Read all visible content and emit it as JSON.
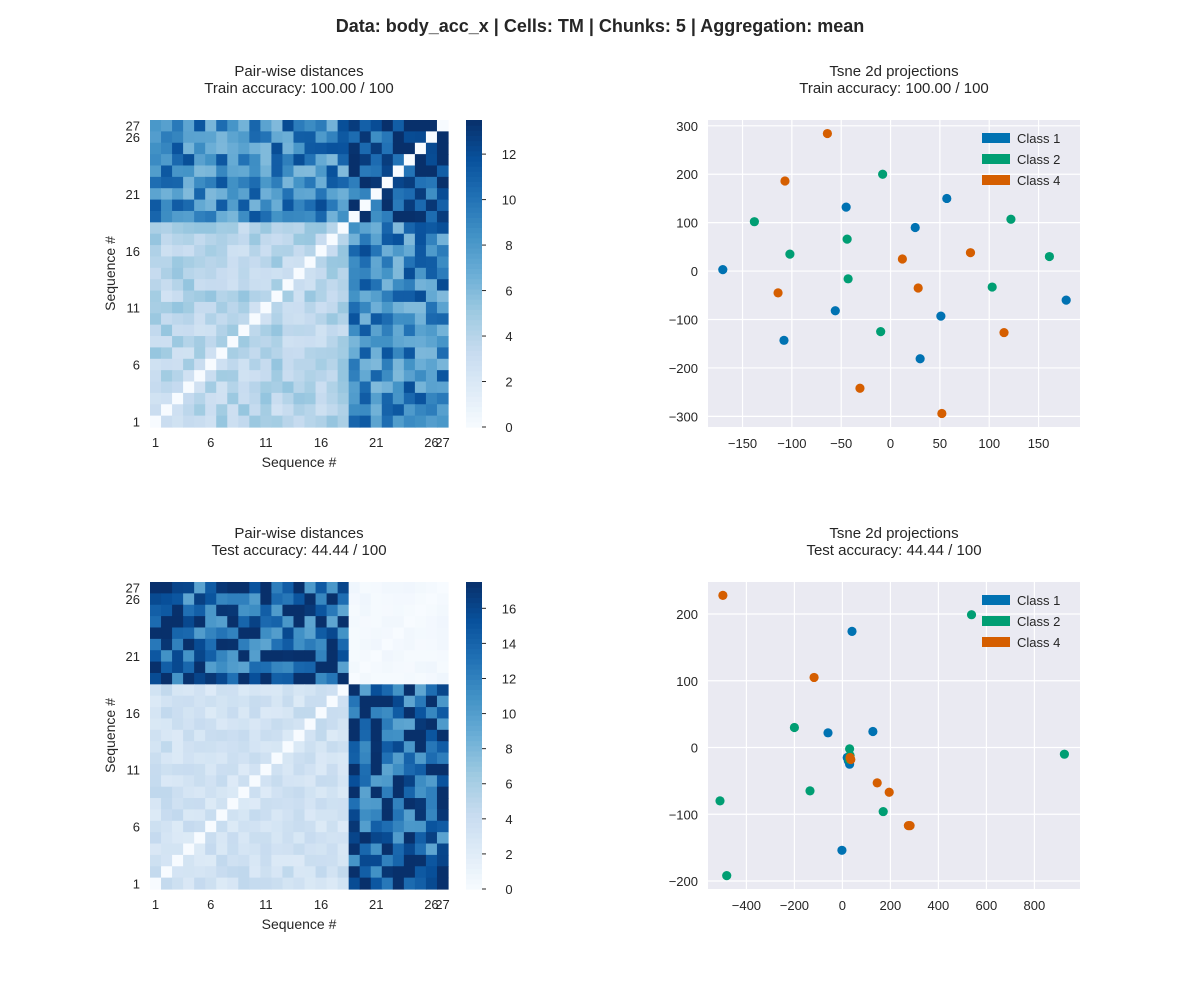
{
  "suptitle": "Data: body_acc_x | Cells: TM | Chunks: 5 | Aggregation: mean",
  "chart_data": [
    {
      "type": "heatmap",
      "title": "Pair-wise distances",
      "subtitle": "Train accuracy: 100.00 / 100",
      "xlabel": "Sequence #",
      "ylabel": "Sequence #",
      "tick_labels": [
        "1",
        "6",
        "11",
        "16",
        "21",
        "26",
        "27"
      ],
      "n": 27,
      "block_split": 18,
      "block_values": {
        "within_first": 4,
        "within_second": 12,
        "between": 9
      },
      "diagonal_value": 0,
      "colormap": "Blues",
      "colorbar_ticks": [
        0,
        2,
        4,
        6,
        8,
        10,
        12
      ],
      "colorbar_range": [
        0,
        13.5
      ]
    },
    {
      "type": "scatter",
      "title": "Tsne 2d projections",
      "subtitle": "Train accuracy: 100.00 / 100",
      "xlim": [
        -185,
        192
      ],
      "ylim": [
        -322,
        312
      ],
      "xticks": [
        -150,
        -100,
        -50,
        0,
        50,
        100,
        150
      ],
      "yticks": [
        -300,
        -200,
        -100,
        0,
        100,
        200,
        300
      ],
      "legend_position": "top-right",
      "series": [
        {
          "name": "Class 1",
          "color": "#0072B2",
          "points": [
            [
              -170,
              3
            ],
            [
              -45,
              132
            ],
            [
              57,
              150
            ],
            [
              25,
              90
            ],
            [
              -56,
              -82
            ],
            [
              -108,
              -143
            ],
            [
              51,
              -93
            ],
            [
              30,
              -181
            ],
            [
              178,
              -60
            ]
          ]
        },
        {
          "name": "Class 2",
          "color": "#009E73",
          "points": [
            [
              -138,
              102
            ],
            [
              -8,
              200
            ],
            [
              -44,
              66
            ],
            [
              -102,
              35
            ],
            [
              -43,
              -16
            ],
            [
              -10,
              -125
            ],
            [
              122,
              107
            ],
            [
              161,
              30
            ],
            [
              103,
              -33
            ]
          ]
        },
        {
          "name": "Class 4",
          "color": "#D55E00",
          "points": [
            [
              -64,
              284
            ],
            [
              -107,
              186
            ],
            [
              -114,
              -45
            ],
            [
              12,
              25
            ],
            [
              28,
              -35
            ],
            [
              81,
              38
            ],
            [
              -31,
              -242
            ],
            [
              52,
              -294
            ],
            [
              115,
              -127
            ]
          ]
        }
      ]
    },
    {
      "type": "heatmap",
      "title": "Pair-wise distances",
      "subtitle": "Test accuracy: 44.44 / 100",
      "xlabel": "Sequence #",
      "ylabel": "Sequence #",
      "tick_labels": [
        "1",
        "6",
        "11",
        "16",
        "21",
        "26",
        "27"
      ],
      "n": 27,
      "block_split": 18,
      "block_values": {
        "within_first": 3.5,
        "within_second": 0.3,
        "between": 14.5
      },
      "diagonal_value": 0,
      "colormap": "Blues",
      "colorbar_ticks": [
        0,
        2,
        4,
        6,
        8,
        10,
        12,
        14,
        16
      ],
      "colorbar_range": [
        0,
        17.5
      ]
    },
    {
      "type": "scatter",
      "title": "Tsne 2d projections",
      "subtitle": "Test accuracy: 44.44 / 100",
      "xlim": [
        -560,
        990
      ],
      "ylim": [
        -212,
        248
      ],
      "xticks": [
        -400,
        -200,
        0,
        200,
        400,
        600,
        800
      ],
      "yticks": [
        -200,
        -100,
        0,
        100,
        200
      ],
      "legend_position": "top-right",
      "series": [
        {
          "name": "Class 1",
          "color": "#0072B2",
          "points": [
            [
              40,
              174
            ],
            [
              -60,
              22
            ],
            [
              127,
              24
            ],
            [
              20,
              -15
            ],
            [
              25,
              -20
            ],
            [
              30,
              -25
            ],
            [
              -2,
              -154
            ]
          ]
        },
        {
          "name": "Class 2",
          "color": "#009E73",
          "points": [
            [
              538,
              199
            ],
            [
              -200,
              30
            ],
            [
              30,
              -2
            ],
            [
              -135,
              -65
            ],
            [
              -510,
              -80
            ],
            [
              170,
              -96
            ],
            [
              -482,
              -192
            ],
            [
              925,
              -10
            ],
            [
              28,
              -18
            ],
            [
              32,
              -12
            ]
          ]
        },
        {
          "name": "Class 4",
          "color": "#D55E00",
          "points": [
            [
              -498,
              228
            ],
            [
              -118,
              105
            ],
            [
              32,
              -15
            ],
            [
              35,
              -18
            ],
            [
              145,
              -53
            ],
            [
              195,
              -67
            ],
            [
              282,
              -117
            ],
            [
              275,
              -117
            ]
          ]
        }
      ]
    }
  ]
}
